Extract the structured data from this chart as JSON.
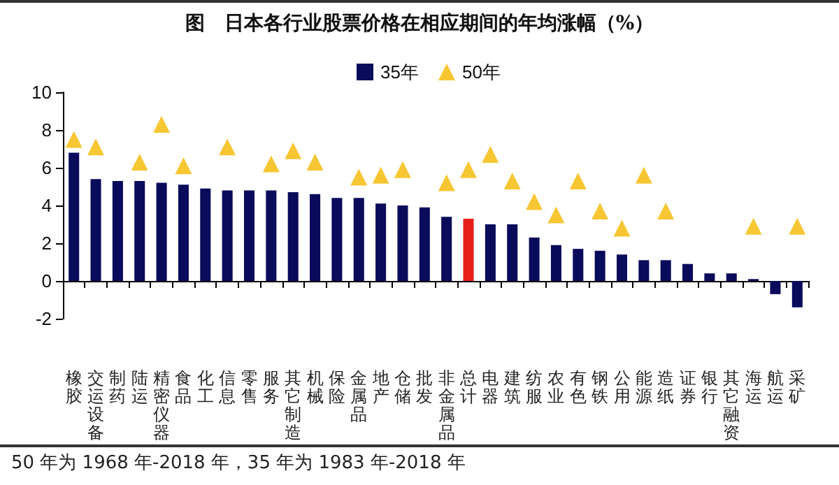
{
  "chart_data": {
    "type": "bar",
    "title": "图　日本各行业股票价格在相应期间的年均涨幅（%）",
    "categories": [
      "橡胶",
      "交运设备",
      "制药",
      "陆运",
      "精密仪器",
      "食品",
      "化工",
      "信息",
      "零售",
      "服务",
      "其它制造",
      "机械",
      "保险",
      "金属品",
      "地产",
      "仓储",
      "批发",
      "非金属品",
      "总计",
      "电器",
      "建筑",
      "纺服",
      "农业",
      "有色",
      "钢铁",
      "公用",
      "能源",
      "造纸",
      "证券",
      "银行",
      "其它融资",
      "海运",
      "航运",
      "采矿"
    ],
    "series": [
      {
        "name": "35年",
        "color": "#0b0b5c",
        "colors": [
          "#0b0b5c",
          "#0b0b5c",
          "#0b0b5c",
          "#0b0b5c",
          "#0b0b5c",
          "#0b0b5c",
          "#0b0b5c",
          "#0b0b5c",
          "#0b0b5c",
          "#0b0b5c",
          "#0b0b5c",
          "#0b0b5c",
          "#0b0b5c",
          "#0b0b5c",
          "#0b0b5c",
          "#0b0b5c",
          "#0b0b5c",
          "#0b0b5c",
          "#e8201c",
          "#0b0b5c",
          "#0b0b5c",
          "#0b0b5c",
          "#0b0b5c",
          "#0b0b5c",
          "#0b0b5c",
          "#0b0b5c",
          "#0b0b5c",
          "#0b0b5c",
          "#0b0b5c",
          "#0b0b5c",
          "#0b0b5c",
          "#0b0b5c",
          "#0b0b5c",
          "#0b0b5c"
        ],
        "values": [
          6.8,
          5.4,
          5.3,
          5.3,
          5.2,
          5.1,
          4.9,
          4.8,
          4.8,
          4.8,
          4.7,
          4.6,
          4.4,
          4.4,
          4.1,
          4.0,
          3.9,
          3.4,
          3.3,
          3.0,
          3.0,
          2.3,
          1.9,
          1.7,
          1.6,
          1.4,
          1.1,
          1.1,
          0.9,
          0.4,
          0.4,
          0.1,
          -0.7,
          -1.4
        ]
      },
      {
        "name": "50年",
        "type": "scatter",
        "marker": "triangle",
        "color": "#f5b800",
        "values": [
          7.5,
          7.1,
          null,
          6.3,
          8.3,
          6.1,
          null,
          7.1,
          null,
          6.2,
          6.9,
          6.3,
          null,
          5.5,
          5.6,
          5.9,
          null,
          5.2,
          5.9,
          6.7,
          5.3,
          4.2,
          3.5,
          5.3,
          3.7,
          2.8,
          5.6,
          3.7,
          null,
          null,
          null,
          2.9,
          null,
          2.9
        ]
      }
    ],
    "ylim": [
      -2,
      10
    ],
    "yticks": [
      -2,
      0,
      2,
      4,
      6,
      8,
      10
    ],
    "legend": "top",
    "annotations": [
      "50 年为 1968 年-2018 年，35 年为 1983 年-2018 年"
    ]
  }
}
